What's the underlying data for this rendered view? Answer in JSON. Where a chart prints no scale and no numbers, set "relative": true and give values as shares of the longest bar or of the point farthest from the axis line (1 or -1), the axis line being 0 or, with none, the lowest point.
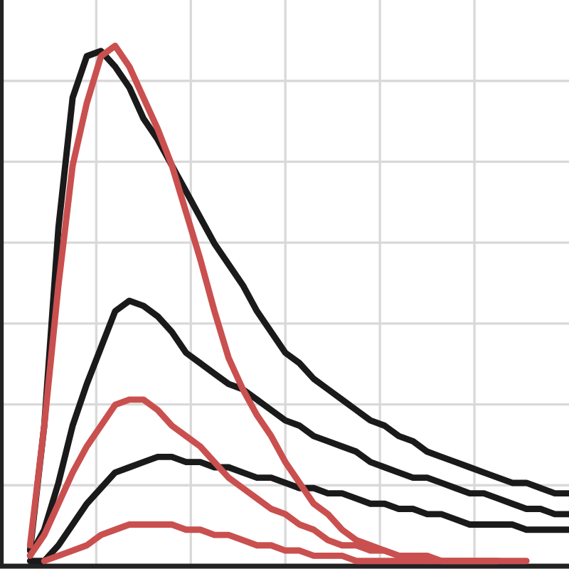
{
  "chart_data": {
    "type": "line",
    "relative": true,
    "grid": true,
    "line_style": "solid",
    "marker": "none",
    "categories": [
      null,
      null,
      null,
      null,
      null,
      null,
      null,
      null,
      null,
      null,
      null,
      null,
      null,
      null,
      null,
      null,
      null,
      null,
      null,
      null,
      null,
      null,
      null,
      null,
      null,
      null,
      null,
      null,
      null,
      null,
      null,
      null,
      null,
      null,
      null,
      null,
      null,
      null,
      null,
      null,
      null
    ],
    "series": [
      {
        "color": "#1a1a1a",
        "values": [
          null,
          null,
          0.03,
          0.27,
          0.65,
          0.9,
          0.98,
          0.99,
          0.96,
          0.92,
          0.86,
          0.82,
          0.77,
          0.72,
          0.67,
          0.62,
          0.58,
          0.54,
          0.49,
          0.45,
          0.41,
          0.39,
          0.36,
          0.34,
          0.32,
          0.3,
          0.28,
          0.27,
          0.25,
          0.24,
          0.22,
          0.21,
          0.2,
          0.19,
          0.18,
          0.17,
          0.16,
          0.16,
          0.15,
          0.14,
          0.14
        ]
      },
      {
        "color": "#1a1a1a",
        "values": [
          null,
          null,
          0.02,
          0.07,
          0.16,
          0.27,
          0.35,
          0.42,
          0.49,
          0.51,
          0.5,
          0.48,
          0.45,
          0.41,
          0.39,
          0.37,
          0.35,
          0.34,
          0.32,
          0.3,
          0.28,
          0.27,
          0.25,
          0.24,
          0.23,
          0.22,
          0.2,
          0.19,
          0.18,
          0.17,
          0.17,
          0.16,
          0.15,
          0.14,
          0.14,
          0.13,
          0.12,
          0.11,
          0.11,
          0.1,
          0.1
        ]
      },
      {
        "color": "#1a1a1a",
        "values": [
          null,
          null,
          0.01,
          0.01,
          0.04,
          0.08,
          0.12,
          0.15,
          0.18,
          0.19,
          0.2,
          0.21,
          0.21,
          0.2,
          0.2,
          0.19,
          0.19,
          0.18,
          0.17,
          0.17,
          0.16,
          0.15,
          0.15,
          0.14,
          0.14,
          0.13,
          0.12,
          0.12,
          0.11,
          0.11,
          0.1,
          0.1,
          0.09,
          0.08,
          0.08,
          0.08,
          0.08,
          0.07,
          0.07,
          0.07,
          0.07
        ]
      },
      {
        "color": "#c9504f",
        "values": [
          null,
          null,
          0.04,
          0.27,
          0.54,
          0.77,
          0.89,
          0.98,
          1,
          0.96,
          0.9,
          0.84,
          0.77,
          0.68,
          0.59,
          0.49,
          0.4,
          0.34,
          0.29,
          0.25,
          0.2,
          0.16,
          0.12,
          0.1,
          0.07,
          0.05,
          0.04,
          0.03,
          0.02,
          0.02,
          0.01,
          0.01,
          0.01,
          0.01,
          0.01,
          0.01,
          null,
          null,
          null,
          null,
          null
        ]
      },
      {
        "color": "#c9504f",
        "values": [
          null,
          null,
          0.02,
          0.06,
          0.12,
          0.18,
          0.23,
          0.27,
          0.31,
          0.32,
          0.32,
          0.3,
          0.27,
          0.25,
          0.23,
          0.2,
          0.17,
          0.15,
          0.13,
          0.11,
          0.1,
          0.08,
          0.07,
          0.05,
          0.04,
          0.04,
          0.03,
          0.03,
          0.02,
          0.02,
          0.02,
          0.01,
          0.01,
          0.01,
          0.01,
          0.01,
          0.01,
          0.01,
          null,
          null,
          null
        ]
      },
      {
        "color": "#c9504f",
        "values": [
          null,
          null,
          null,
          0.01,
          0.02,
          0.03,
          0.04,
          0.06,
          0.07,
          0.08,
          0.08,
          0.08,
          0.08,
          0.07,
          0.07,
          0.06,
          0.06,
          0.05,
          0.04,
          0.04,
          0.03,
          0.03,
          0.02,
          0.02,
          0.02,
          0.01,
          0.01,
          0.01,
          0.01,
          0.01,
          0.01,
          null,
          null,
          null,
          null,
          null,
          null,
          null,
          null,
          null,
          null
        ]
      }
    ]
  }
}
